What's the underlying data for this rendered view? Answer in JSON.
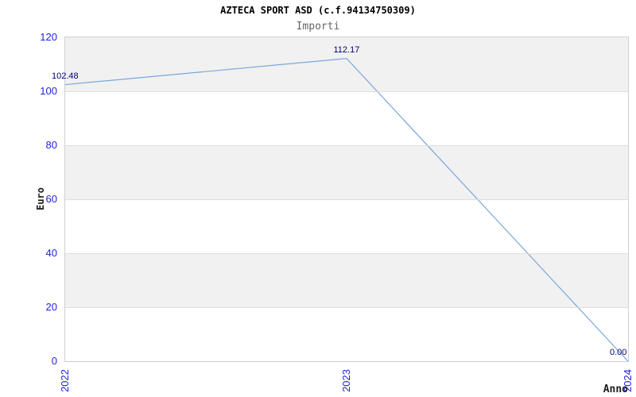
{
  "chart_data": {
    "type": "line",
    "title": "AZTECA SPORT ASD (c.f.94134750309)",
    "subtitle": "Importi",
    "xlabel": "Anno",
    "ylabel": "Euro",
    "categories": [
      "2022",
      "2023",
      "2024"
    ],
    "series": [
      {
        "name": "Importi",
        "values": [
          102.48,
          112.17,
          0.0
        ]
      }
    ],
    "point_labels": [
      "102.48",
      "112.17",
      "0.00"
    ],
    "ylim": [
      0,
      120
    ],
    "yticks": [
      0,
      20,
      40,
      60,
      80,
      100,
      120
    ],
    "legend": "none",
    "grid": "horizontal gridlines every 20 with alternating gray/white bands, gray on 100-120, 60-80, 20-40",
    "colors": {
      "line": "#79a7d9",
      "tick_text": "#2222e0",
      "point_label_text": "#000070",
      "band": "#f1f1f1",
      "gridline": "#dedede",
      "plot_border": "#cfcfcf",
      "title_text": "#000000",
      "subtitle_text": "#666666",
      "axis_title_text": "#1a1a1a"
    }
  }
}
